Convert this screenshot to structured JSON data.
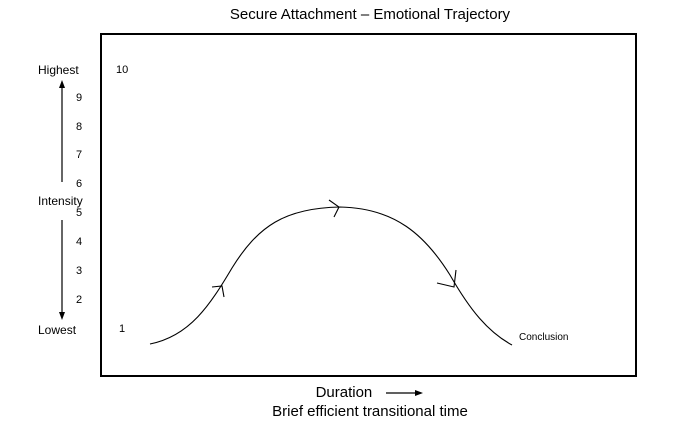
{
  "title": "Secure Attachment – Emotional Trajectory",
  "y_axis": {
    "top_label": "Highest",
    "middle_label": "Intensity",
    "bottom_label": "Lowest",
    "ticks": [
      "10",
      "9",
      "8",
      "7",
      "6",
      "5",
      "4",
      "3",
      "2",
      "1"
    ]
  },
  "x_axis": {
    "label": "Duration",
    "subtitle": "Brief efficient transitional time"
  },
  "curve": {
    "end_label": "Conclusion"
  }
}
